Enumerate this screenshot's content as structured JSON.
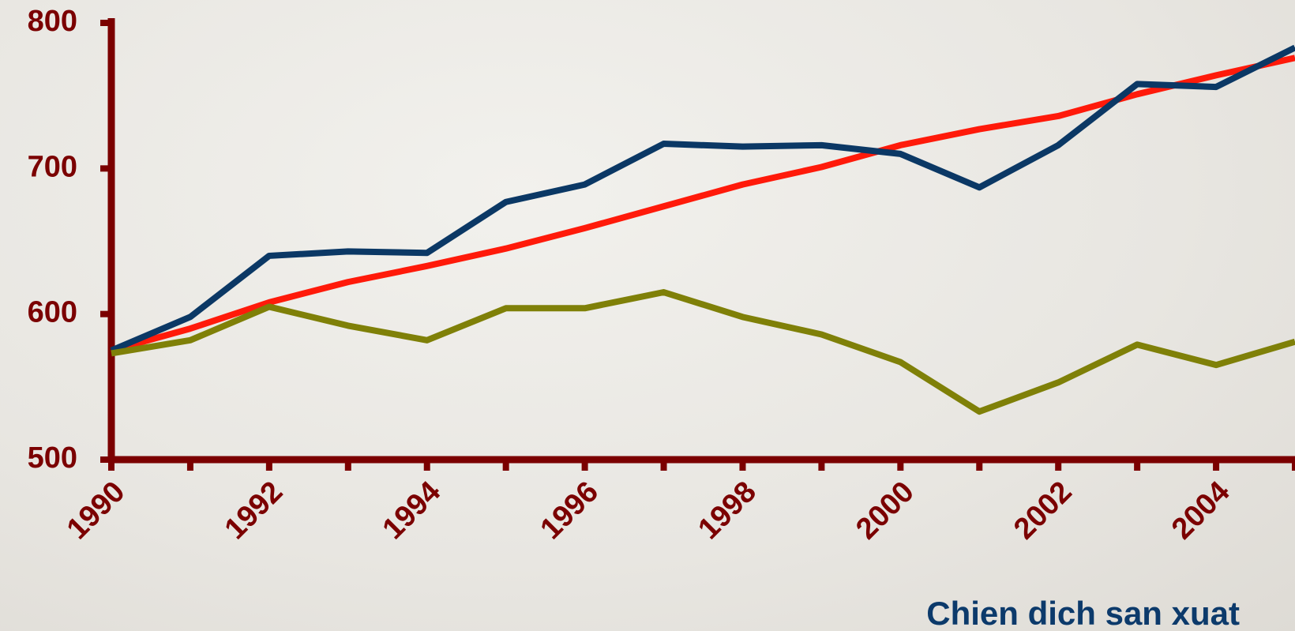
{
  "chart_data": {
    "type": "line",
    "x": [
      1990,
      1991,
      1992,
      1993,
      1994,
      1995,
      1996,
      1997,
      1998,
      1999,
      2000,
      2001,
      2002,
      2003,
      2004,
      2005
    ],
    "xlim": [
      1990,
      2005
    ],
    "xticks": [
      1990,
      1992,
      1994,
      1996,
      1998,
      2000,
      2002,
      2004
    ],
    "ylim": [
      500,
      800
    ],
    "yticks": [
      500,
      600,
      700,
      800
    ],
    "annotation": "Chien dich san xuat",
    "axis_color": "#7b0000",
    "series": [
      {
        "color": "#ff1a0a",
        "values": [
          575,
          590,
          608,
          622,
          633,
          645,
          659,
          674,
          689,
          701,
          716,
          727,
          736,
          751,
          764,
          776
        ]
      },
      {
        "color": "#0b3865",
        "values": [
          575,
          598,
          640,
          643,
          642,
          677,
          689,
          717,
          715,
          716,
          710,
          687,
          716,
          758,
          756,
          783
        ]
      },
      {
        "color": "#7f8008",
        "values": [
          573,
          582,
          605,
          592,
          582,
          604,
          604,
          615,
          598,
          586,
          567,
          533,
          553,
          579,
          565,
          581
        ]
      }
    ]
  }
}
